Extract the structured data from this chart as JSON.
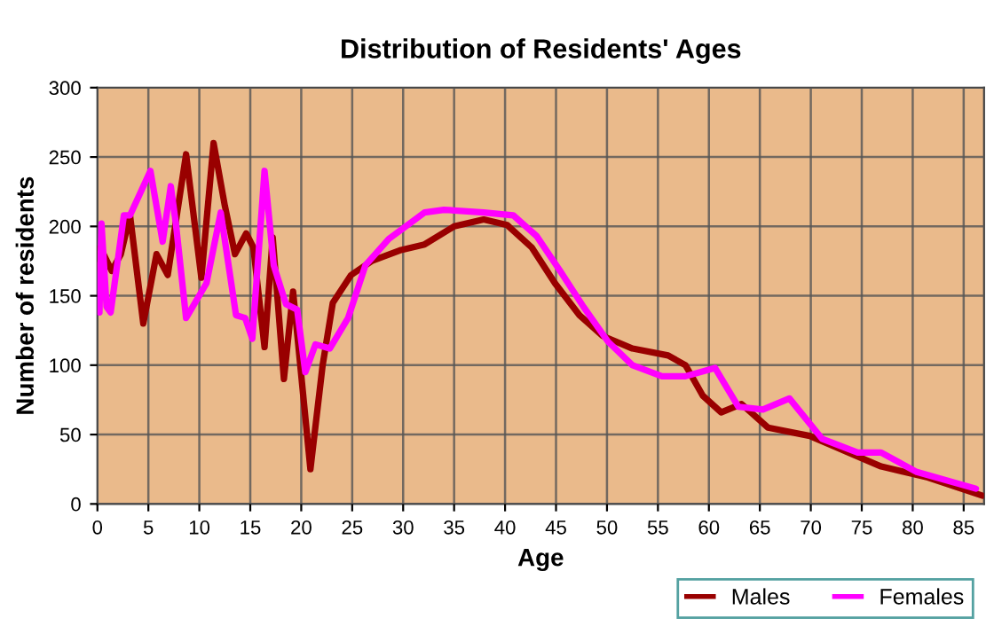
{
  "chart_data": {
    "type": "line",
    "title": "Distribution of Residents' Ages",
    "xlabel": "Age",
    "ylabel": "Number of residents",
    "xlim": [
      0,
      87
    ],
    "xticks": [
      0,
      5,
      10,
      15,
      20,
      25,
      30,
      35,
      40,
      45,
      50,
      55,
      60,
      65,
      70,
      75,
      80,
      85
    ],
    "ylim": [
      0,
      300
    ],
    "yticks": [
      0,
      50,
      100,
      150,
      200,
      250,
      300
    ],
    "grid": true,
    "legend": "bottom right",
    "marker": "none",
    "line_style": "solid",
    "series": [
      {
        "name": "Males",
        "color": "#990000",
        "x": [
          0,
          0.3,
          0.6,
          1.4,
          2.3,
          3.2,
          4.5,
          5.8,
          6.9,
          8.7,
          10.2,
          11.4,
          12.5,
          13.5,
          14.6,
          15.3,
          16.4,
          17.2,
          18.3,
          19.2,
          20.9,
          22.1,
          23.1,
          24.9,
          26.9,
          29.8,
          32.1,
          35,
          37.9,
          40.2,
          42.6,
          44.9,
          47.3,
          49.6,
          52.5,
          56,
          57.7,
          59.4,
          61.2,
          63.2,
          65.8,
          69.9,
          73.4,
          76.9,
          81.5,
          86.8
        ],
        "values": [
          184,
          168,
          180,
          168,
          180,
          208,
          130,
          180,
          165,
          252,
          163,
          260,
          215,
          180,
          195,
          185,
          113,
          192,
          90,
          153,
          25,
          100,
          145,
          165,
          175,
          183,
          187,
          200,
          205,
          201,
          185,
          159,
          136,
          121,
          112,
          107,
          100,
          78,
          66,
          72,
          55,
          49,
          38,
          27,
          19,
          6
        ]
      },
      {
        "name": "Females",
        "color": "#ff00ff",
        "x": [
          0,
          0.2,
          0.4,
          0.9,
          1.3,
          2.6,
          3.2,
          5.2,
          6.4,
          7.2,
          7.7,
          8.7,
          10.7,
          12.1,
          13.6,
          14.5,
          15.2,
          16.4,
          17.3,
          18.5,
          19.6,
          20.4,
          21.4,
          22.8,
          24.6,
          26.3,
          28.6,
          32.1,
          34,
          37.9,
          40.8,
          43.1,
          45.4,
          47.7,
          50.1,
          52.5,
          55.4,
          57.7,
          60.6,
          62.9,
          65.3,
          67.9,
          71.1,
          74.6,
          76.9,
          80.4,
          86.2
        ],
        "values": [
          172,
          138,
          202,
          142,
          138,
          208,
          208,
          240,
          189,
          229,
          202,
          134,
          159,
          210,
          136,
          134,
          119,
          240,
          172,
          144,
          140,
          95,
          115,
          112,
          134,
          172,
          191,
          210,
          212,
          210,
          208,
          193,
          168,
          142,
          117,
          100,
          92,
          92,
          98,
          70,
          68,
          76,
          47,
          37,
          37,
          23,
          11
        ]
      }
    ]
  }
}
